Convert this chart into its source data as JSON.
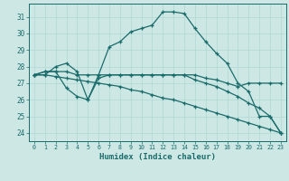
{
  "xlabel": "Humidex (Indice chaleur)",
  "ylabel": "",
  "background_color": "#cde8e4",
  "grid_color": "#b0d8d4",
  "line_color": "#1a6b6b",
  "xlim": [
    -0.5,
    23.5
  ],
  "ylim": [
    23.5,
    31.8
  ],
  "yticks": [
    24,
    25,
    26,
    27,
    28,
    29,
    30,
    31
  ],
  "xticks": [
    0,
    1,
    2,
    3,
    4,
    5,
    6,
    7,
    8,
    9,
    10,
    11,
    12,
    13,
    14,
    15,
    16,
    17,
    18,
    19,
    20,
    21,
    22,
    23
  ],
  "lines": [
    {
      "x": [
        0,
        1,
        2,
        3,
        4,
        5,
        6,
        7,
        8,
        9,
        10,
        11,
        12,
        13,
        14,
        15,
        16,
        17,
        18,
        19,
        20,
        21,
        22,
        23
      ],
      "y": [
        27.5,
        27.7,
        27.7,
        27.7,
        27.5,
        27.5,
        27.5,
        27.5,
        27.5,
        27.5,
        27.5,
        27.5,
        27.5,
        27.5,
        27.5,
        27.5,
        27.3,
        27.2,
        27.0,
        26.8,
        27.0,
        27.0,
        27.0,
        27.0
      ]
    },
    {
      "x": [
        0,
        1,
        2,
        3,
        4,
        5,
        6,
        7,
        8,
        9,
        10,
        11,
        12,
        13,
        14,
        15,
        16,
        17,
        18,
        19,
        20,
        21,
        22,
        23
      ],
      "y": [
        27.5,
        27.7,
        27.7,
        26.7,
        26.2,
        26.0,
        27.3,
        27.5,
        27.5,
        27.5,
        27.5,
        27.5,
        27.5,
        27.5,
        27.5,
        27.2,
        27.0,
        26.8,
        26.5,
        26.2,
        25.8,
        25.5,
        25.0,
        24.0
      ]
    },
    {
      "x": [
        0,
        1,
        2,
        3,
        4,
        5,
        6,
        7,
        8,
        9,
        10,
        11,
        12,
        13,
        14,
        15,
        16,
        17,
        18,
        19,
        20,
        21,
        22,
        23
      ],
      "y": [
        27.5,
        27.5,
        28.0,
        28.2,
        27.7,
        26.0,
        27.5,
        29.2,
        29.5,
        30.1,
        30.3,
        30.5,
        31.3,
        31.3,
        31.2,
        30.3,
        29.5,
        28.8,
        28.2,
        27.0,
        26.5,
        25.0,
        25.0,
        24.0
      ]
    },
    {
      "x": [
        0,
        1,
        2,
        3,
        4,
        5,
        6,
        7,
        8,
        9,
        10,
        11,
        12,
        13,
        14,
        15,
        16,
        17,
        18,
        19,
        20,
        21,
        22,
        23
      ],
      "y": [
        27.5,
        27.5,
        27.4,
        27.3,
        27.2,
        27.1,
        27.0,
        26.9,
        26.8,
        26.6,
        26.5,
        26.3,
        26.1,
        26.0,
        25.8,
        25.6,
        25.4,
        25.2,
        25.0,
        24.8,
        24.6,
        24.4,
        24.2,
        24.0
      ]
    }
  ]
}
